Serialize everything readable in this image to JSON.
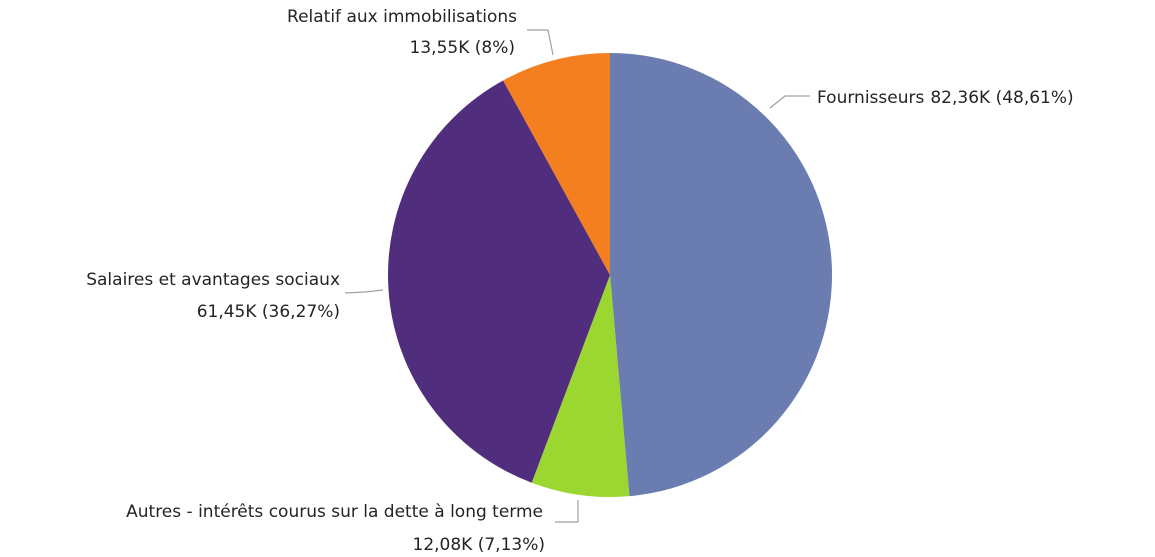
{
  "chart_data": {
    "type": "pie",
    "categories": [
      "Fournisseurs",
      "Autres - intérêts courus sur la dette à long terme",
      "Salaires et avantages sociaux",
      "Relatif aux immobilisations"
    ],
    "values": [
      82360,
      12080,
      61450,
      13550
    ],
    "value_labels": [
      "82,36K (48,61%)",
      "12,08K (7,13%)",
      "61,45K (36,27%)",
      "13,55K (8%)"
    ],
    "colors": [
      "#6b7db0",
      "#9bd631",
      "#512d7e",
      "#f47f20"
    ]
  }
}
